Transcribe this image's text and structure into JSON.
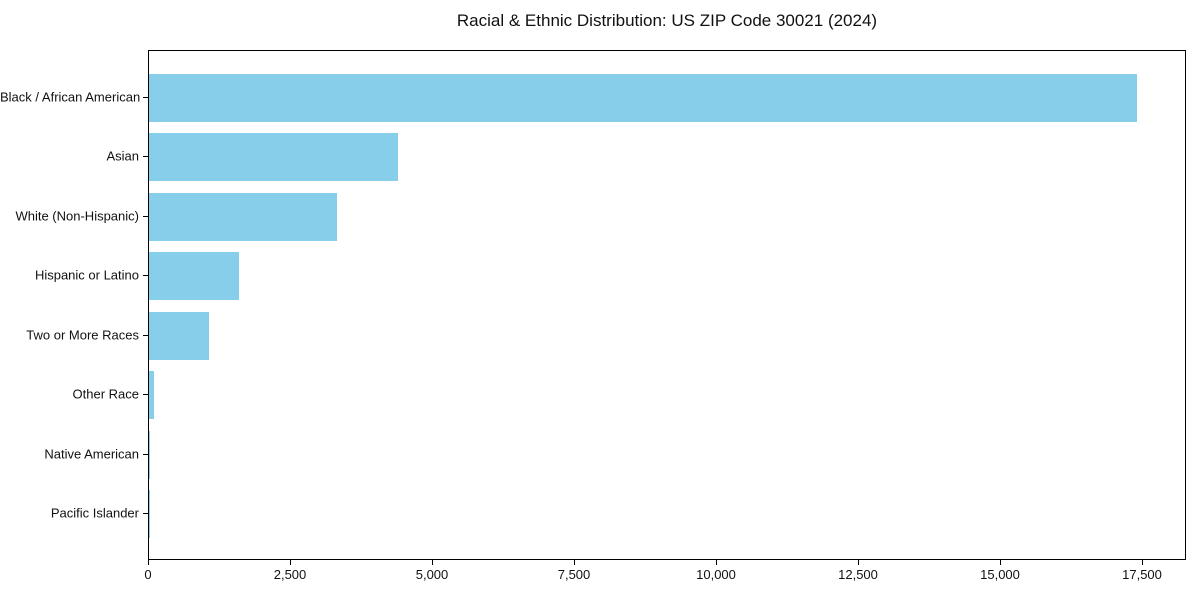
{
  "chart_data": {
    "type": "bar",
    "orientation": "horizontal",
    "title": "Racial & Ethnic Distribution: US ZIP Code 30021 (2024)",
    "categories": [
      "Black / African American",
      "Asian",
      "White (Non-Hispanic)",
      "Hispanic or Latino",
      "Two or More Races",
      "Other Race",
      "Native American",
      "Pacific Islander"
    ],
    "values": [
      17400,
      4380,
      3310,
      1580,
      1060,
      80,
      20,
      10
    ],
    "xlabel": "",
    "ylabel": "",
    "xlim": [
      0,
      18275
    ],
    "x_ticks": [
      0,
      2500,
      5000,
      7500,
      10000,
      12500,
      15000,
      17500
    ],
    "x_tick_labels": [
      "0",
      "2,500",
      "5,000",
      "7,500",
      "10,000",
      "12,500",
      "15,000",
      "17,500"
    ],
    "bar_color": "#87CEEB",
    "grid": false,
    "legend": null
  }
}
